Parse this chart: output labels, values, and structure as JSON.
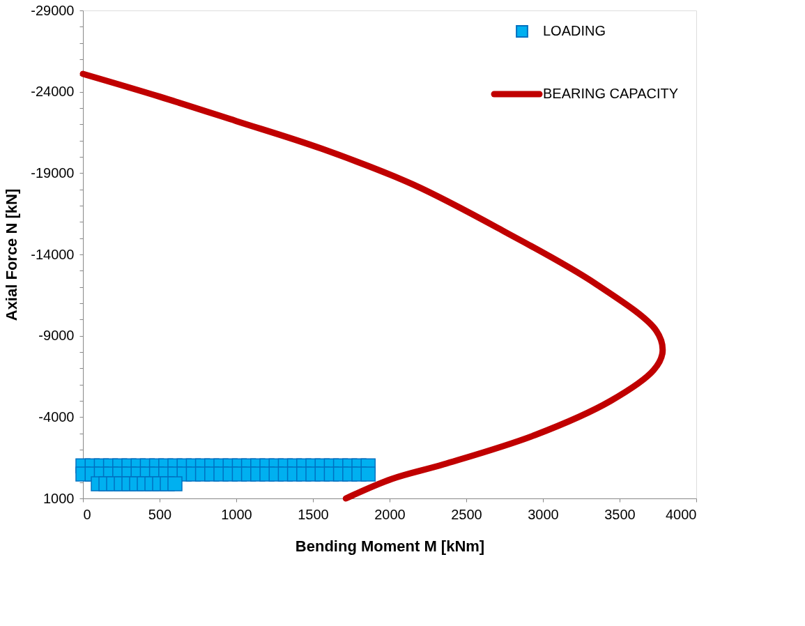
{
  "chart_data": {
    "type": "scatter",
    "xlabel": "Bending Moment M [kNm]",
    "ylabel": "Axial Force N [kN]",
    "xlim": [
      0,
      4000
    ],
    "xticks": [
      0,
      500,
      1000,
      1500,
      2000,
      2500,
      3000,
      3500,
      4000
    ],
    "ylim": [
      1000,
      -29000
    ],
    "yticks": [
      -29000,
      {
        "value": -28000,
        "label": null
      },
      {
        "value": -27000,
        "label": null
      },
      {
        "value": -26000,
        "label": null
      },
      {
        "value": -25000,
        "label": null
      },
      -24000,
      {
        "value": -23000,
        "label": null
      },
      {
        "value": -22000,
        "label": null
      },
      {
        "value": -21000,
        "label": null
      },
      {
        "value": -20000,
        "label": null
      },
      -19000,
      {
        "value": -18000,
        "label": null
      },
      {
        "value": -17000,
        "label": null
      },
      {
        "value": -16000,
        "label": null
      },
      {
        "value": -15000,
        "label": null
      },
      -14000,
      {
        "value": -13000,
        "label": null
      },
      {
        "value": -12000,
        "label": null
      },
      {
        "value": -11000,
        "label": null
      },
      {
        "value": -10000,
        "label": null
      },
      -9000,
      {
        "value": -8000,
        "label": null
      },
      {
        "value": -7000,
        "label": null
      },
      {
        "value": -6000,
        "label": null
      },
      {
        "value": -5000,
        "label": null
      },
      -4000,
      {
        "value": -3000,
        "label": null
      },
      {
        "value": -2000,
        "label": null
      },
      {
        "value": -1000,
        "label": null
      },
      {
        "value": 0,
        "label": null
      },
      1000
    ],
    "grid": false,
    "legend": "top right",
    "series": [
      {
        "name": "LOADING",
        "marker": "square",
        "color": "#00b0f0",
        "x": [
          0,
          60,
          120,
          180,
          240,
          300,
          360,
          420,
          480,
          540,
          600,
          660,
          720,
          780,
          840,
          900,
          960,
          1020,
          1080,
          1140,
          1200,
          1260,
          1320,
          1380,
          1440,
          1500,
          1560,
          1620,
          1680,
          1740,
          1800,
          1860,
          0,
          60,
          120,
          180,
          240,
          300,
          360,
          420,
          480,
          540,
          600,
          660,
          720,
          780,
          840,
          900,
          960,
          1020,
          1080,
          1140,
          1200,
          1260,
          1320,
          1380,
          1440,
          1500,
          1560,
          1620,
          1680,
          1740,
          1800,
          1860,
          100,
          150,
          200,
          250,
          300,
          350,
          400,
          450,
          500,
          550,
          600
        ],
        "values": [
          -1000,
          -1000,
          -1000,
          -1000,
          -1000,
          -1000,
          -1000,
          -1000,
          -1000,
          -1000,
          -1000,
          -1000,
          -1000,
          -1000,
          -1000,
          -1000,
          -1000,
          -1000,
          -1000,
          -1000,
          -1000,
          -1000,
          -1000,
          -1000,
          -1000,
          -1000,
          -1000,
          -1000,
          -1000,
          -1000,
          -1000,
          -1000,
          -500,
          -500,
          -500,
          -500,
          -500,
          -500,
          -500,
          -500,
          -500,
          -500,
          -500,
          -500,
          -500,
          -500,
          -500,
          -500,
          -500,
          -500,
          -500,
          -500,
          -500,
          -500,
          -500,
          -500,
          -500,
          -500,
          -500,
          -500,
          -500,
          -500,
          -500,
          -500,
          100,
          100,
          100,
          100,
          100,
          100,
          100,
          100,
          100,
          100,
          100
        ]
      },
      {
        "name": "BEARING CAPACITY",
        "type": "line",
        "line_style": "solid",
        "marker": "none",
        "color": "#c00000",
        "x": [
          0,
          500,
          1000,
          1557,
          2153,
          2750,
          3343,
          3740,
          3780,
          3723,
          3442,
          2949,
          2353,
          2015,
          1715
        ],
        "values": [
          -25100,
          -23700,
          -22200,
          -20500,
          -18300,
          -15400,
          -12200,
          -9300,
          -8000,
          -6900,
          -5000,
          -2900,
          -1100,
          -200,
          1000
        ]
      }
    ]
  }
}
